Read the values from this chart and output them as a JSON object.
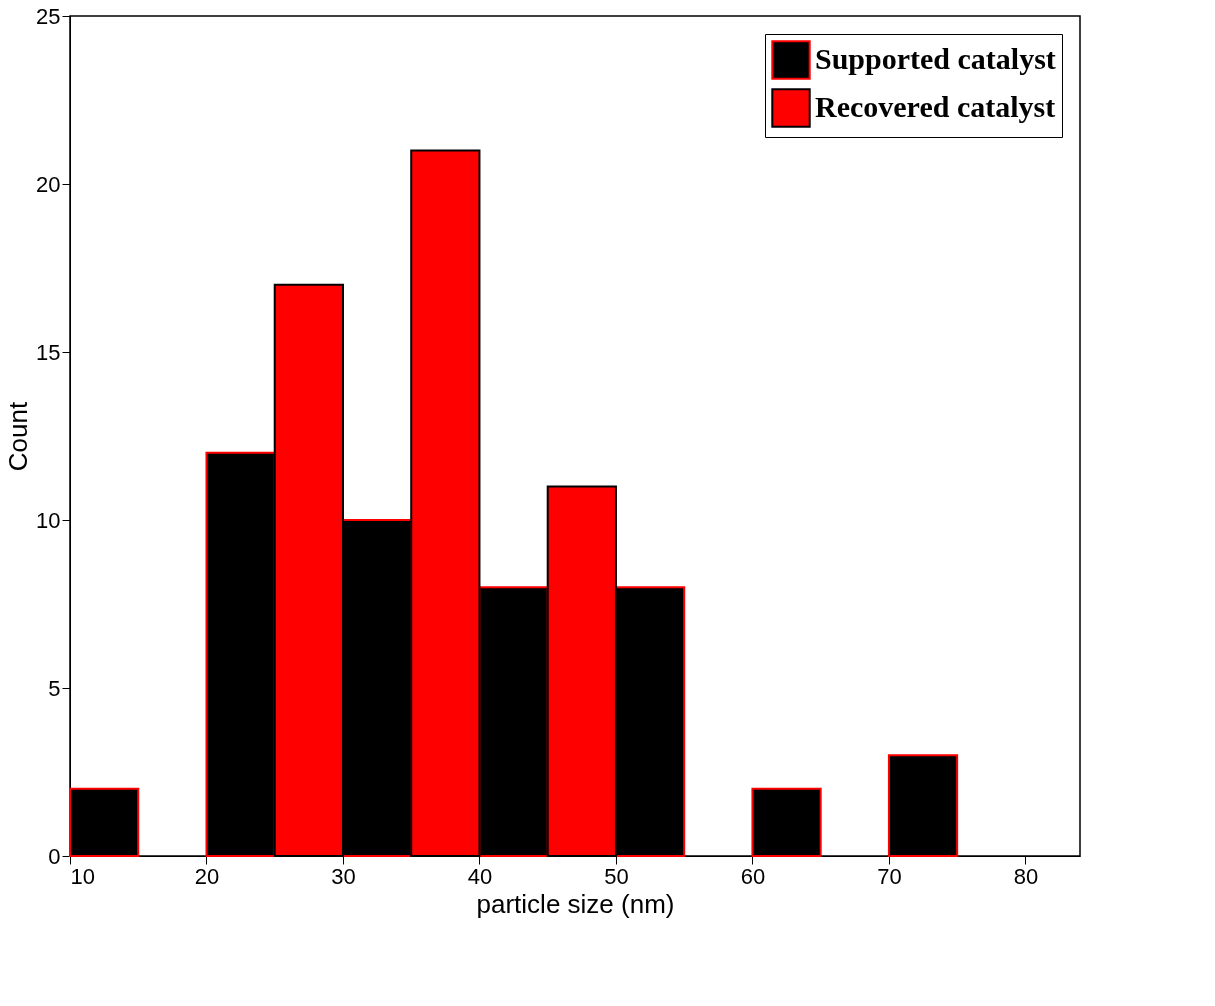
{
  "chart_data": {
    "type": "histogram",
    "xlabel": "particle size (nm)",
    "ylabel": "Count",
    "bins": [
      10,
      15,
      20,
      25,
      30,
      35,
      40,
      45,
      50,
      55,
      60,
      65,
      70,
      75
    ],
    "series": [
      {
        "name": "Supported catalyst",
        "color": "#000000",
        "values": [
          2,
          null,
          12,
          null,
          10,
          null,
          8,
          null,
          8,
          null,
          2,
          null,
          3
        ]
      },
      {
        "name": "Recovered catalyst",
        "color": "#ff0000",
        "values": [
          null,
          null,
          null,
          17,
          null,
          21,
          null,
          11,
          null,
          null,
          null,
          null,
          null
        ]
      }
    ],
    "xlim": [
      10,
      84
    ],
    "xticks": [
      10,
      20,
      30,
      40,
      50,
      60,
      70,
      80
    ],
    "ylim": [
      0,
      25
    ],
    "yticks": [
      0,
      5,
      10,
      15,
      20,
      25
    ],
    "grid": false,
    "legend": "top right"
  }
}
